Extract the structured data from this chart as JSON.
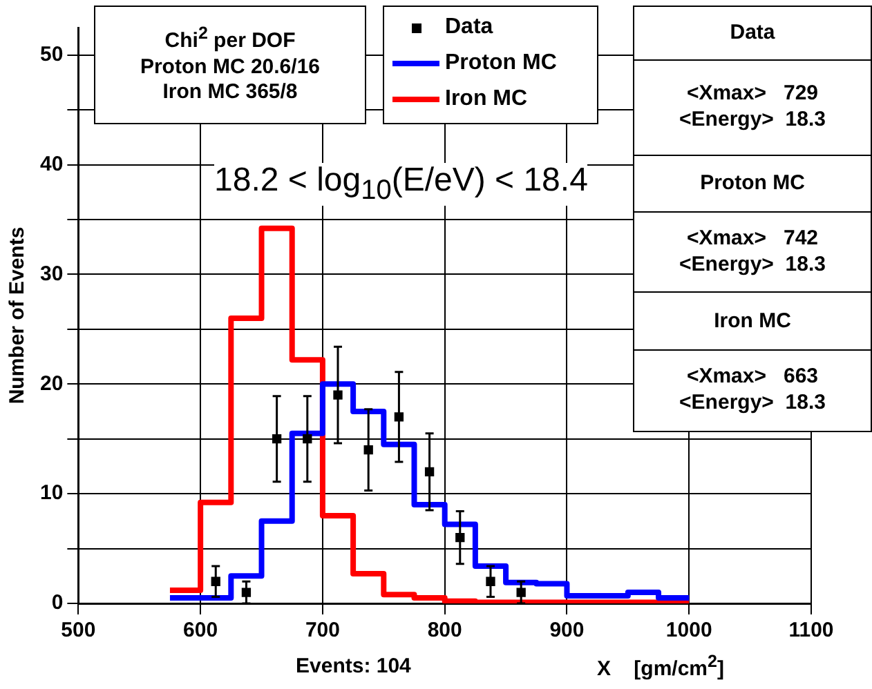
{
  "chart_data": {
    "type": "histogram",
    "ylabel": "Number of Events",
    "xlabel": "X    [gm/cm$^{2}$]",
    "bins": [
      575,
      600,
      625,
      650,
      675,
      700,
      725,
      750,
      775,
      800,
      825,
      850,
      875,
      900,
      925,
      950,
      975,
      1000
    ],
    "series": [
      {
        "name": "Data",
        "type": "scatter",
        "color": "#000000",
        "x": [
          612.5,
          637.5,
          662.5,
          687.5,
          712.5,
          737.5,
          762.5,
          787.5,
          812.5,
          837.5,
          862.5
        ],
        "values": [
          2,
          1,
          15,
          15,
          19,
          14,
          17,
          12,
          6,
          2,
          1
        ],
        "errors": [
          1.4,
          1,
          3.9,
          3.9,
          4.4,
          3.7,
          4.1,
          3.5,
          2.4,
          1.4,
          1
        ]
      },
      {
        "name": "Proton MC",
        "color": "#0000ff",
        "values": [
          0.5,
          0.5,
          2.5,
          7.5,
          15.5,
          20,
          17.5,
          14.5,
          9,
          7.2,
          3.4,
          1.9,
          1.8,
          0.7,
          0.7,
          1,
          0.5
        ]
      },
      {
        "name": "Iron MC",
        "color": "#ff0000",
        "values": [
          1.2,
          9.2,
          26,
          34.2,
          22.2,
          8,
          2.7,
          0.8,
          0.5,
          0.2,
          0.1,
          0.1,
          0.1,
          0.1,
          0.1,
          0.1,
          0.1
        ]
      }
    ],
    "marker": "square",
    "legend": "top",
    "grid": true,
    "xlim": [
      500,
      1100
    ],
    "xticks": [
      500,
      600,
      700,
      800,
      900,
      1000,
      1100
    ],
    "ylim": [
      0,
      52.5
    ],
    "yticks": [
      0,
      {
        "value": 5,
        "label": null
      },
      10,
      {
        "value": 15,
        "label": null
      },
      20,
      {
        "value": 25,
        "label": null
      },
      30,
      {
        "value": 35,
        "label": null
      },
      40,
      {
        "value": 45,
        "label": null
      },
      50
    ],
    "annotations": [
      "Chi$^{2}$ per DOF",
      "Proton MC 20.6/16",
      "Iron MC 365/8",
      "Data",
      "<Xmax>   729",
      "<Energy>  18.3",
      "Proton MC",
      "<Xmax>   742",
      "<Energy>  18.3",
      "Iron MC",
      "<Xmax>   663",
      "<Energy>  18.3",
      "18.2 < log$_{10}$(E/eV) < 18.4",
      "Events: 104"
    ]
  }
}
